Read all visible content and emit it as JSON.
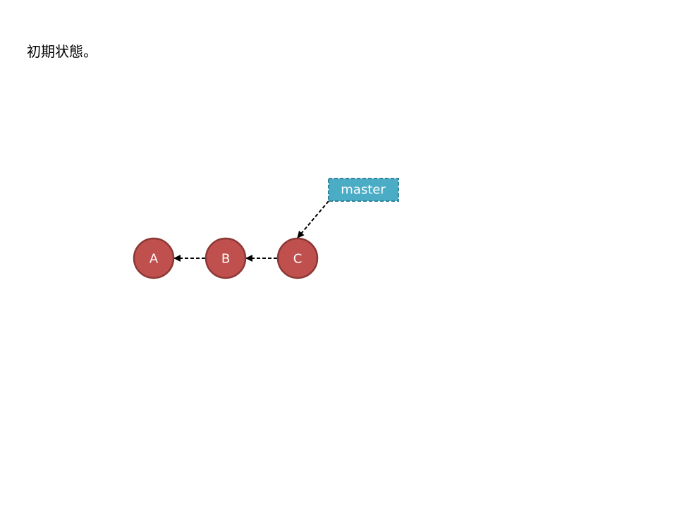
{
  "caption": "初期状態。",
  "colors": {
    "commit_fill": "#c0504d",
    "commit_stroke": "#8c3836",
    "branch_fill": "#4bacc6",
    "branch_stroke": "#31859c",
    "arrow": "#000000"
  },
  "commits": [
    {
      "id": "A"
    },
    {
      "id": "B"
    },
    {
      "id": "C"
    }
  ],
  "branch": {
    "label": "master"
  }
}
